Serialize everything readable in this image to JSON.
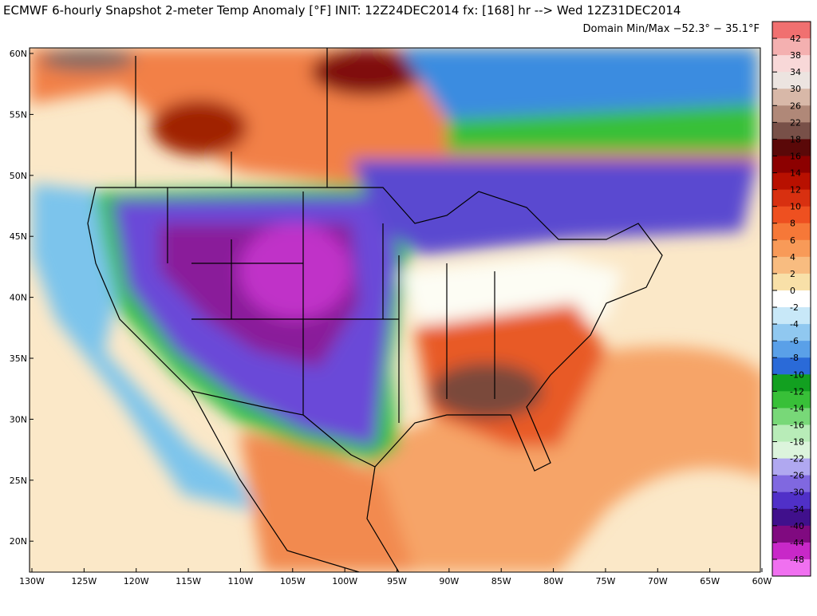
{
  "header": {
    "title": "ECMWF 6-hourly Snapshot 2-meter Temp Anomaly [°F] INIT: 12Z24DEC2014 fx: [168] hr --> Wed 12Z31DEC2014",
    "subtitle": "Domain Min/Max −52.3° −  35.1°F"
  },
  "map": {
    "lat_labels": [
      "60N",
      "55N",
      "50N",
      "45N",
      "40N",
      "35N",
      "30N",
      "25N",
      "20N"
    ],
    "lon_labels": [
      "130W",
      "125W",
      "120W",
      "115W",
      "110W",
      "105W",
      "100W",
      "95W",
      "90W",
      "85W",
      "80W",
      "75W",
      "70W",
      "65W",
      "60W"
    ]
  },
  "colorbar": {
    "labels": [
      42,
      38,
      34,
      30,
      26,
      22,
      18,
      16,
      14,
      12,
      10,
      8,
      6,
      4,
      2,
      0,
      -2,
      -4,
      -6,
      -8,
      -10,
      -12,
      -14,
      -16,
      -18,
      -22,
      -26,
      -30,
      -34,
      -40,
      -44,
      -48
    ],
    "colors": [
      "#f07070",
      "#f4b0b0",
      "#f8d8d8",
      "#ece4e0",
      "#d8b8a8",
      "#b08878",
      "#785048",
      "#5a0808",
      "#8c0000",
      "#b81000",
      "#d83010",
      "#ee5020",
      "#f67838",
      "#f89a58",
      "#f8bc80",
      "#f8e0a8",
      "#ffffff",
      "#c8e8f8",
      "#90c8f0",
      "#5aa0e8",
      "#2a6ad8",
      "#12a020",
      "#38c038",
      "#78d878",
      "#b8ecb8",
      "#dcf4dc",
      "#b0a8f0",
      "#8068e0",
      "#5030c8",
      "#40108c",
      "#800a80",
      "#c828c8",
      "#f070f0"
    ]
  }
}
